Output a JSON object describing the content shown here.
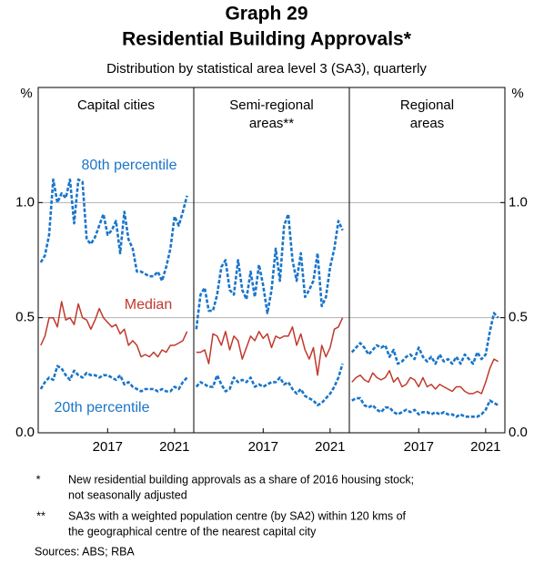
{
  "header": {
    "title": [
      "Graph 29",
      "Residential Building Approvals*"
    ],
    "subtitle": "Distribution by statistical area level 3 (SA3), quarterly",
    "y_unit": "%"
  },
  "chart_data": [
    {
      "type": "line",
      "title": [
        "Capital cities"
      ],
      "x": [
        2013,
        2013.25,
        2013.5,
        2013.75,
        2014,
        2014.25,
        2014.5,
        2014.75,
        2015,
        2015.25,
        2015.5,
        2015.75,
        2016,
        2016.25,
        2016.5,
        2016.75,
        2017,
        2017.25,
        2017.5,
        2017.75,
        2018,
        2018.25,
        2018.5,
        2018.75,
        2019,
        2019.25,
        2019.5,
        2019.75,
        2020,
        2020.25,
        2020.5,
        2020.75,
        2021,
        2021.25,
        2021.5,
        2021.75
      ],
      "xlim": [
        2012.85,
        2022.15
      ],
      "xticks": [
        2017,
        2021
      ],
      "ylim": [
        0,
        1.5
      ],
      "yticks": [
        {
          "value": 0,
          "label": "0.0"
        },
        {
          "value": 0.5,
          "label": "0.5"
        },
        {
          "value": 1,
          "label": "1.0"
        }
      ],
      "grid": true,
      "series": [
        {
          "name": "80th percentile",
          "color": "#1a75c9",
          "dash": true,
          "values": [
            0.74,
            0.77,
            0.86,
            1.1,
            1.0,
            1.04,
            1.02,
            1.1,
            0.91,
            1.1,
            1.09,
            0.84,
            0.82,
            0.85,
            0.9,
            0.95,
            0.86,
            0.88,
            0.92,
            0.78,
            0.96,
            0.84,
            0.8,
            0.7,
            0.7,
            0.69,
            0.68,
            0.68,
            0.7,
            0.66,
            0.72,
            0.8,
            0.94,
            0.9,
            0.96,
            1.03
          ]
        },
        {
          "name": "Median",
          "color": "#c0392b",
          "dash": false,
          "values": [
            0.38,
            0.42,
            0.5,
            0.5,
            0.46,
            0.57,
            0.49,
            0.5,
            0.47,
            0.56,
            0.5,
            0.49,
            0.45,
            0.49,
            0.54,
            0.5,
            0.48,
            0.46,
            0.47,
            0.43,
            0.45,
            0.38,
            0.4,
            0.38,
            0.33,
            0.34,
            0.33,
            0.35,
            0.33,
            0.36,
            0.35,
            0.38,
            0.38,
            0.39,
            0.4,
            0.44
          ]
        },
        {
          "name": "20th percentile",
          "color": "#1a75c9",
          "dash": true,
          "values": [
            0.19,
            0.22,
            0.24,
            0.23,
            0.29,
            0.28,
            0.25,
            0.23,
            0.27,
            0.25,
            0.24,
            0.26,
            0.25,
            0.25,
            0.24,
            0.25,
            0.25,
            0.24,
            0.23,
            0.25,
            0.21,
            0.22,
            0.2,
            0.19,
            0.18,
            0.19,
            0.19,
            0.19,
            0.18,
            0.19,
            0.18,
            0.18,
            0.2,
            0.19,
            0.22,
            0.24
          ]
        }
      ]
    },
    {
      "type": "line",
      "title": [
        "Semi-regional",
        "areas**"
      ],
      "x": [
        2013,
        2013.25,
        2013.5,
        2013.75,
        2014,
        2014.25,
        2014.5,
        2014.75,
        2015,
        2015.25,
        2015.5,
        2015.75,
        2016,
        2016.25,
        2016.5,
        2016.75,
        2017,
        2017.25,
        2017.5,
        2017.75,
        2018,
        2018.25,
        2018.5,
        2018.75,
        2019,
        2019.25,
        2019.5,
        2019.75,
        2020,
        2020.25,
        2020.5,
        2020.75,
        2021,
        2021.25,
        2021.5,
        2021.75
      ],
      "xlim": [
        2012.85,
        2022.15
      ],
      "xticks": [
        2017,
        2021
      ],
      "ylim": [
        0,
        1.5
      ],
      "yticks": [
        {
          "value": 0,
          "label": "0.0"
        },
        {
          "value": 0.5,
          "label": "0.5"
        },
        {
          "value": 1,
          "label": "1.0"
        }
      ],
      "grid": true,
      "series": [
        {
          "color": "#1a75c9",
          "dash": true,
          "values": [
            0.45,
            0.6,
            0.63,
            0.53,
            0.53,
            0.6,
            0.72,
            0.75,
            0.62,
            0.6,
            0.75,
            0.62,
            0.58,
            0.7,
            0.59,
            0.73,
            0.64,
            0.52,
            0.62,
            0.8,
            0.66,
            0.9,
            0.95,
            0.75,
            0.66,
            0.78,
            0.59,
            0.62,
            0.66,
            0.78,
            0.55,
            0.59,
            0.72,
            0.8,
            0.92,
            0.88
          ]
        },
        {
          "color": "#c0392b",
          "dash": false,
          "values": [
            0.35,
            0.35,
            0.36,
            0.3,
            0.43,
            0.42,
            0.38,
            0.44,
            0.36,
            0.42,
            0.4,
            0.32,
            0.37,
            0.42,
            0.4,
            0.44,
            0.41,
            0.43,
            0.37,
            0.42,
            0.41,
            0.42,
            0.42,
            0.46,
            0.38,
            0.43,
            0.36,
            0.32,
            0.37,
            0.25,
            0.38,
            0.33,
            0.37,
            0.45,
            0.46,
            0.5
          ]
        },
        {
          "color": "#1a75c9",
          "dash": true,
          "values": [
            0.2,
            0.22,
            0.21,
            0.2,
            0.2,
            0.25,
            0.21,
            0.18,
            0.19,
            0.24,
            0.22,
            0.23,
            0.22,
            0.24,
            0.2,
            0.21,
            0.2,
            0.21,
            0.22,
            0.22,
            0.24,
            0.21,
            0.22,
            0.19,
            0.17,
            0.19,
            0.16,
            0.15,
            0.14,
            0.12,
            0.13,
            0.15,
            0.17,
            0.2,
            0.24,
            0.3
          ]
        }
      ]
    },
    {
      "type": "line",
      "title": [
        "Regional",
        "areas"
      ],
      "x": [
        2013,
        2013.25,
        2013.5,
        2013.75,
        2014,
        2014.25,
        2014.5,
        2014.75,
        2015,
        2015.25,
        2015.5,
        2015.75,
        2016,
        2016.25,
        2016.5,
        2016.75,
        2017,
        2017.25,
        2017.5,
        2017.75,
        2018,
        2018.25,
        2018.5,
        2018.75,
        2019,
        2019.25,
        2019.5,
        2019.75,
        2020,
        2020.25,
        2020.5,
        2020.75,
        2021,
        2021.25,
        2021.5,
        2021.75
      ],
      "xlim": [
        2012.85,
        2022.15
      ],
      "xticks": [
        2017,
        2021
      ],
      "ylim": [
        0,
        1.5
      ],
      "yticks": [
        {
          "value": 0,
          "label": "0.0"
        },
        {
          "value": 0.5,
          "label": "0.5"
        },
        {
          "value": 1,
          "label": "1.0"
        }
      ],
      "grid": true,
      "series": [
        {
          "color": "#1a75c9",
          "dash": true,
          "values": [
            0.35,
            0.37,
            0.39,
            0.37,
            0.34,
            0.36,
            0.38,
            0.37,
            0.38,
            0.33,
            0.36,
            0.3,
            0.31,
            0.33,
            0.34,
            0.32,
            0.37,
            0.33,
            0.31,
            0.33,
            0.3,
            0.34,
            0.31,
            0.32,
            0.3,
            0.33,
            0.3,
            0.34,
            0.32,
            0.3,
            0.35,
            0.32,
            0.34,
            0.44,
            0.52,
            0.5
          ]
        },
        {
          "color": "#c0392b",
          "dash": false,
          "values": [
            0.22,
            0.24,
            0.25,
            0.23,
            0.22,
            0.26,
            0.24,
            0.23,
            0.24,
            0.27,
            0.22,
            0.24,
            0.2,
            0.21,
            0.24,
            0.23,
            0.2,
            0.24,
            0.2,
            0.21,
            0.19,
            0.21,
            0.2,
            0.19,
            0.18,
            0.2,
            0.2,
            0.18,
            0.17,
            0.17,
            0.18,
            0.17,
            0.22,
            0.28,
            0.32,
            0.31
          ]
        },
        {
          "color": "#1a75c9",
          "dash": true,
          "values": [
            0.14,
            0.15,
            0.15,
            0.12,
            0.11,
            0.12,
            0.1,
            0.09,
            0.11,
            0.11,
            0.09,
            0.08,
            0.09,
            0.1,
            0.09,
            0.1,
            0.08,
            0.09,
            0.09,
            0.08,
            0.09,
            0.08,
            0.09,
            0.08,
            0.08,
            0.07,
            0.08,
            0.07,
            0.07,
            0.07,
            0.07,
            0.08,
            0.1,
            0.14,
            0.13,
            0.12
          ]
        }
      ]
    }
  ],
  "footer": {
    "notes": [
      {
        "mark": "*",
        "lines": [
          "New residential building approvals as a share of 2016 housing stock;",
          "not seasonally adjusted"
        ]
      },
      {
        "mark": "**",
        "lines": [
          "SA3s with a weighted population centre (by SA2) within 120 kms of",
          "the geographical centre of the nearest capital city"
        ]
      }
    ],
    "sources": "Sources: ABS; RBA"
  }
}
